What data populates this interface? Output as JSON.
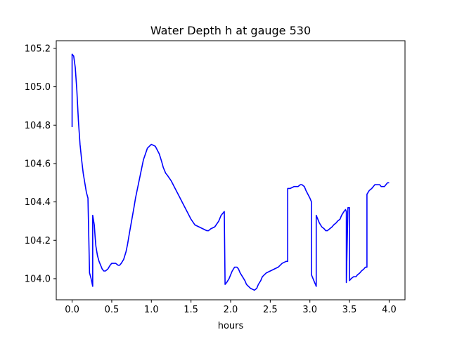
{
  "chart_data": {
    "type": "line",
    "title": "Water Depth h at gauge 530",
    "xlabel": "hours",
    "ylabel": "",
    "xlim": [
      -0.2,
      4.2
    ],
    "ylim": [
      103.89,
      105.24
    ],
    "grid": false,
    "x_ticks": [
      0.0,
      0.5,
      1.0,
      1.5,
      2.0,
      2.5,
      3.0,
      3.5,
      4.0
    ],
    "x_tick_labels": [
      "0.0",
      "0.5",
      "1.0",
      "1.5",
      "2.0",
      "2.5",
      "3.0",
      "3.5",
      "4.0"
    ],
    "y_ticks": [
      104.0,
      104.2,
      104.4,
      104.6,
      104.8,
      105.0,
      105.2
    ],
    "y_tick_labels": [
      "104.0",
      "104.2",
      "104.4",
      "104.6",
      "104.8",
      "105.0",
      "105.2"
    ],
    "series": [
      {
        "color": "#0000ff",
        "x": [
          0.0,
          0.0,
          0.02,
          0.04,
          0.06,
          0.08,
          0.1,
          0.12,
          0.14,
          0.16,
          0.18,
          0.2,
          0.22,
          0.24,
          0.26,
          0.26,
          0.28,
          0.29,
          0.29,
          0.3,
          0.32,
          0.34,
          0.36,
          0.38,
          0.4,
          0.42,
          0.45,
          0.48,
          0.5,
          0.52,
          0.55,
          0.58,
          0.6,
          0.62,
          0.65,
          0.68,
          0.7,
          0.72,
          0.75,
          0.78,
          0.8,
          0.85,
          0.9,
          0.95,
          1.0,
          1.05,
          1.1,
          1.13,
          1.15,
          1.18,
          1.2,
          1.25,
          1.3,
          1.35,
          1.4,
          1.45,
          1.5,
          1.55,
          1.6,
          1.65,
          1.7,
          1.72,
          1.75,
          1.8,
          1.85,
          1.88,
          1.9,
          1.92,
          1.93,
          1.93,
          1.95,
          1.98,
          2.0,
          2.02,
          2.05,
          2.08,
          2.1,
          2.12,
          2.15,
          2.18,
          2.2,
          2.25,
          2.3,
          2.33,
          2.35,
          2.38,
          2.4,
          2.45,
          2.5,
          2.55,
          2.6,
          2.65,
          2.7,
          2.72,
          2.72,
          2.75,
          2.8,
          2.85,
          2.88,
          2.9,
          2.93,
          2.95,
          3.0,
          3.02,
          3.02,
          3.05,
          3.08,
          3.08,
          3.1,
          3.12,
          3.15,
          3.18,
          3.2,
          3.22,
          3.25,
          3.28,
          3.3,
          3.33,
          3.35,
          3.38,
          3.4,
          3.43,
          3.45,
          3.46,
          3.46,
          3.48,
          3.5,
          3.5,
          3.52,
          3.55,
          3.58,
          3.6,
          3.63,
          3.65,
          3.68,
          3.7,
          3.72,
          3.72,
          3.75,
          3.78,
          3.8,
          3.82,
          3.85,
          3.88,
          3.9,
          3.92,
          3.94,
          3.96,
          3.98,
          4.0
        ],
        "y": [
          104.79,
          105.17,
          105.16,
          105.1,
          104.98,
          104.82,
          104.7,
          104.62,
          104.55,
          104.5,
          104.45,
          104.42,
          104.03,
          104.0,
          103.96,
          104.33,
          104.28,
          104.22,
          104.22,
          104.17,
          104.12,
          104.09,
          104.07,
          104.05,
          104.04,
          104.04,
          104.05,
          104.07,
          104.08,
          104.08,
          104.08,
          104.07,
          104.07,
          104.08,
          104.1,
          104.14,
          104.18,
          104.23,
          104.3,
          104.37,
          104.42,
          104.52,
          104.62,
          104.68,
          104.7,
          104.69,
          104.65,
          104.61,
          104.58,
          104.55,
          104.54,
          104.51,
          104.47,
          104.43,
          104.39,
          104.35,
          104.31,
          104.28,
          104.27,
          104.26,
          104.25,
          104.25,
          104.26,
          104.27,
          104.3,
          104.33,
          104.34,
          104.35,
          103.97,
          103.97,
          103.98,
          104.0,
          104.02,
          104.04,
          104.06,
          104.06,
          104.05,
          104.03,
          104.01,
          103.99,
          103.97,
          103.95,
          103.94,
          103.95,
          103.97,
          103.99,
          104.01,
          104.03,
          104.04,
          104.05,
          104.06,
          104.08,
          104.09,
          104.09,
          104.47,
          104.47,
          104.48,
          104.48,
          104.49,
          104.49,
          104.48,
          104.46,
          104.42,
          104.4,
          104.02,
          103.99,
          103.96,
          104.33,
          104.31,
          104.29,
          104.27,
          104.26,
          104.25,
          104.25,
          104.26,
          104.27,
          104.28,
          104.29,
          104.3,
          104.31,
          104.33,
          104.35,
          104.36,
          104.35,
          103.98,
          104.37,
          104.37,
          103.99,
          104.0,
          104.01,
          104.01,
          104.02,
          104.03,
          104.04,
          104.05,
          104.06,
          104.06,
          104.44,
          104.46,
          104.47,
          104.48,
          104.49,
          104.49,
          104.49,
          104.48,
          104.48,
          104.48,
          104.49,
          104.5,
          104.5
        ]
      }
    ]
  }
}
